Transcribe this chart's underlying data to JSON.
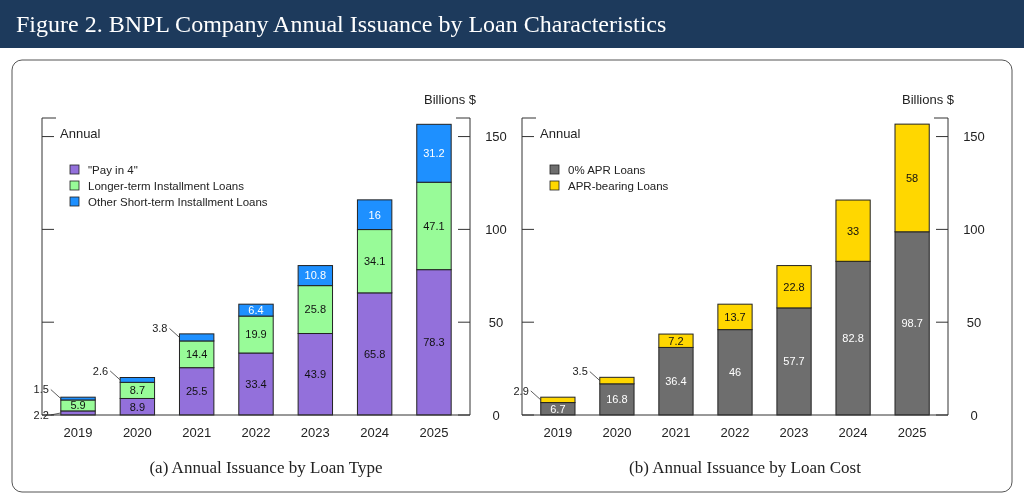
{
  "chart_data": [
    {
      "type": "bar",
      "title": "Figure 2. BNPL Company Annual Issuance by Loan Characteristics",
      "subtitle": "(a)  Annual Issuance by Loan Type",
      "ylabel": "Billions $",
      "annotations": [
        "Annual"
      ],
      "categories": [
        "2019",
        "2020",
        "2021",
        "2022",
        "2023",
        "2024",
        "2025"
      ],
      "stacked": true,
      "series": [
        {
          "name": "\"Pay in 4\"",
          "color": "#9370db",
          "values": [
            2.2,
            8.9,
            25.5,
            33.4,
            43.9,
            65.8,
            78.3
          ]
        },
        {
          "name": "Longer-term Installment Loans",
          "color": "#98fb98",
          "values": [
            5.9,
            8.7,
            14.4,
            19.9,
            25.8,
            34.1,
            47.1
          ]
        },
        {
          "name": "Other Short-term Installment Loans",
          "color": "#1e90ff",
          "values": [
            1.5,
            2.6,
            3.8,
            6.4,
            10.8,
            16,
            31.2
          ]
        }
      ],
      "ylim": [
        0,
        160
      ],
      "yticks": [
        0,
        50,
        100,
        150
      ],
      "data_labels": true,
      "legend": "top left"
    },
    {
      "type": "bar",
      "subtitle": "(b)  Annual Issuance by Loan Cost",
      "ylabel": "Billions $",
      "annotations": [
        "Annual"
      ],
      "categories": [
        "2019",
        "2020",
        "2021",
        "2022",
        "2023",
        "2024",
        "2025"
      ],
      "stacked": true,
      "series": [
        {
          "name": "0% APR Loans",
          "color": "#6e6e6e",
          "values": [
            6.7,
            16.8,
            36.4,
            46,
            57.7,
            82.8,
            98.7
          ]
        },
        {
          "name": "APR-bearing Loans",
          "color": "#ffd700",
          "values": [
            2.9,
            3.5,
            7.2,
            13.7,
            22.8,
            33,
            58
          ]
        }
      ],
      "ylim": [
        0,
        160
      ],
      "yticks": [
        0,
        50,
        100,
        150
      ],
      "data_labels": true,
      "legend": "top left"
    }
  ]
}
